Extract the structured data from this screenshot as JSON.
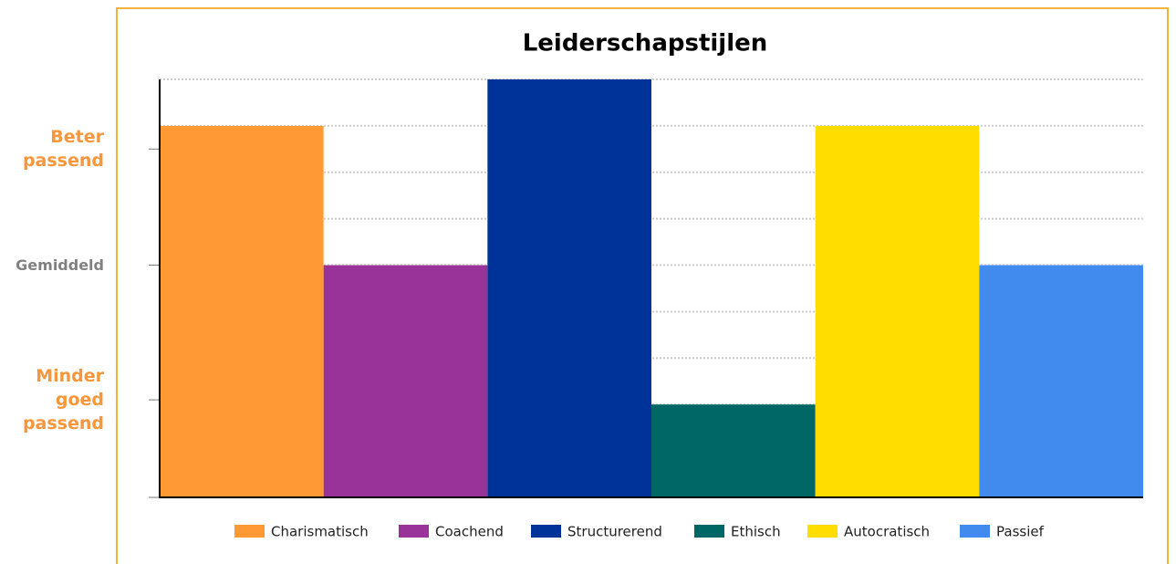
{
  "chart_data": {
    "type": "bar",
    "title": "Leiderschapstijlen",
    "categories": [
      "Charismatisch",
      "Coachend",
      "Structurerend",
      "Ethisch",
      "Autocratisch",
      "Passief"
    ],
    "values": [
      8,
      5,
      9,
      2,
      8,
      5
    ],
    "colors": [
      "#ff9933",
      "#993399",
      "#003399",
      "#006666",
      "#ffdd00",
      "#428bee"
    ],
    "ylim": [
      0,
      9
    ],
    "yticks": [
      {
        "value": 2.1,
        "label": "Minder goed passend"
      },
      {
        "value": 5,
        "label": "Gemiddeld"
      },
      {
        "value": 7.5,
        "label": "Beter passend"
      }
    ],
    "ytick_colors": [
      "#f7963b",
      "#808080",
      "#f7963b"
    ],
    "ygrid": [
      1,
      2,
      3,
      4,
      5,
      6,
      7,
      8,
      9
    ],
    "grid": true,
    "legend": "bottom"
  }
}
